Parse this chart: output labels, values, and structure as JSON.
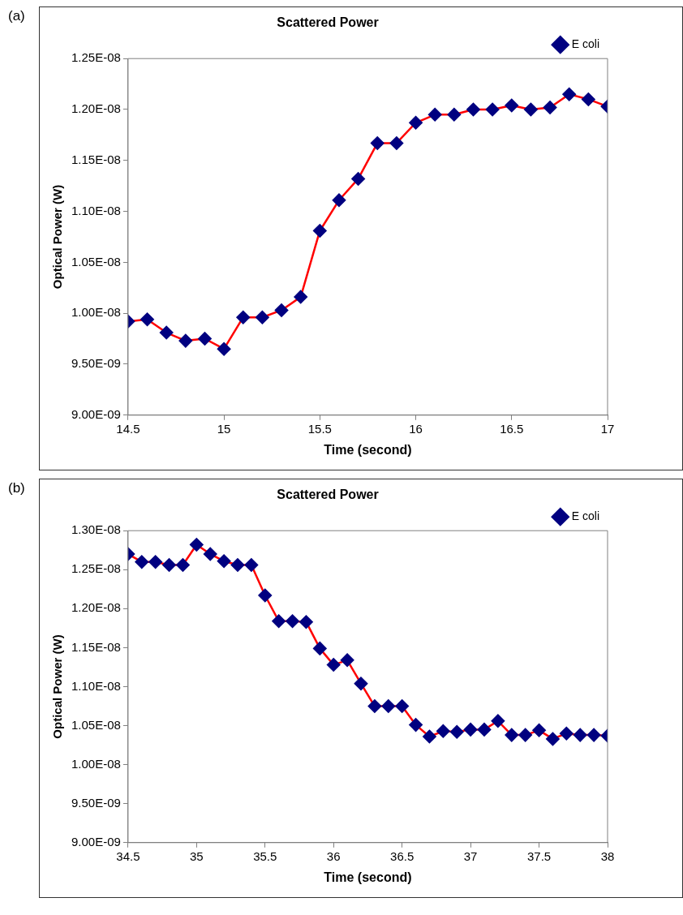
{
  "chart_data": [
    {
      "type": "line",
      "title": "Scattered Power",
      "xlabel": "Time (second)",
      "ylabel": "Optical Power (W)",
      "annotations": [
        "(a)"
      ],
      "legend": "top right",
      "grid": false,
      "marker": "diamond",
      "line_style": "solid",
      "xlim": [
        14.5,
        17
      ],
      "xticks": [
        14.5,
        15,
        15.5,
        16,
        16.5,
        17
      ],
      "ylim": [
        9e-09,
        1.25e-08
      ],
      "yticks": [
        {
          "value": 9e-09,
          "label": "9.00E-09"
        },
        {
          "value": 9.5e-09,
          "label": "9.50E-09"
        },
        {
          "value": 1e-08,
          "label": "1.00E-08"
        },
        {
          "value": 1.05e-08,
          "label": "1.05E-08"
        },
        {
          "value": 1.1e-08,
          "label": "1.10E-08"
        },
        {
          "value": 1.15e-08,
          "label": "1.15E-08"
        },
        {
          "value": 1.2e-08,
          "label": "1.20E-08"
        },
        {
          "value": 1.25e-08,
          "label": "1.25E-08"
        }
      ],
      "x": [
        14.5,
        14.6,
        14.7,
        14.8,
        14.9,
        15.0,
        15.1,
        15.2,
        15.3,
        15.4,
        15.5,
        15.6,
        15.7,
        15.8,
        15.9,
        16.0,
        16.1,
        16.2,
        16.3,
        16.4,
        16.5,
        16.6,
        16.7,
        16.8,
        16.9,
        17.0
      ],
      "series": [
        {
          "name": "E coli",
          "color": "#ff0000",
          "colors": [
            "#000080",
            "#000080",
            "#000080",
            "#000080",
            "#000080",
            "#000080",
            "#000080",
            "#000080",
            "#000080",
            "#000080",
            "#000080",
            "#000080",
            "#000080",
            "#000080",
            "#000080",
            "#000080",
            "#000080",
            "#000080",
            "#000080",
            "#000080",
            "#000080",
            "#000080",
            "#000080",
            "#000080",
            "#000080",
            "#000080"
          ],
          "values": [
            9.92e-09,
            9.94e-09,
            9.81e-09,
            9.73e-09,
            9.75e-09,
            9.65e-09,
            9.96e-09,
            9.96e-09,
            1.003e-08,
            1.016e-08,
            1.081e-08,
            1.111e-08,
            1.132e-08,
            1.167e-08,
            1.167e-08,
            1.187e-08,
            1.195e-08,
            1.195e-08,
            1.2e-08,
            1.2e-08,
            1.204e-08,
            1.2e-08,
            1.202e-08,
            1.215e-08,
            1.21e-08,
            1.203e-08
          ]
        }
      ]
    },
    {
      "type": "line",
      "title": "Scattered Power",
      "xlabel": "Time (second)",
      "ylabel": "Optical Power (W)",
      "annotations": [
        "(b)"
      ],
      "legend": "top right",
      "grid": false,
      "marker": "diamond",
      "line_style": "solid",
      "xlim": [
        34.5,
        38
      ],
      "xticks": [
        34.5,
        35,
        35.5,
        36,
        36.5,
        37,
        37.5,
        38
      ],
      "ylim": [
        9e-09,
        1.3e-08
      ],
      "yticks": [
        {
          "value": 9e-09,
          "label": "9.00E-09"
        },
        {
          "value": 9.5e-09,
          "label": "9.50E-09"
        },
        {
          "value": 1e-08,
          "label": "1.00E-08"
        },
        {
          "value": 1.05e-08,
          "label": "1.05E-08"
        },
        {
          "value": 1.1e-08,
          "label": "1.10E-08"
        },
        {
          "value": 1.15e-08,
          "label": "1.15E-08"
        },
        {
          "value": 1.2e-08,
          "label": "1.20E-08"
        },
        {
          "value": 1.25e-08,
          "label": "1.25E-08"
        },
        {
          "value": 1.3e-08,
          "label": "1.30E-08"
        }
      ],
      "x": [
        34.5,
        34.6,
        34.7,
        34.8,
        34.9,
        35.0,
        35.1,
        35.2,
        35.3,
        35.4,
        35.5,
        35.6,
        35.7,
        35.8,
        35.9,
        36.0,
        36.1,
        36.2,
        36.3,
        36.4,
        36.5,
        36.6,
        36.7,
        36.8,
        36.9,
        37.0,
        37.1,
        37.2,
        37.3,
        37.4,
        37.5,
        37.6,
        37.7,
        37.8,
        37.9,
        38.0
      ],
      "series": [
        {
          "name": "E coli",
          "color": "#ff0000",
          "colors": [
            "#000080",
            "#000080",
            "#000080",
            "#000080",
            "#000080",
            "#000080",
            "#000080",
            "#000080",
            "#000080",
            "#000080",
            "#000080",
            "#000080",
            "#000080",
            "#000080",
            "#000080",
            "#000080",
            "#000080",
            "#000080",
            "#000080",
            "#000080",
            "#000080",
            "#000080",
            "#000080",
            "#000080",
            "#000080",
            "#000080",
            "#000080",
            "#000080",
            "#000080",
            "#000080",
            "#000080",
            "#000080",
            "#000080",
            "#000080",
            "#000080",
            "#000080"
          ],
          "values": [
            1.27e-08,
            1.26e-08,
            1.26e-08,
            1.256e-08,
            1.256e-08,
            1.282e-08,
            1.27e-08,
            1.261e-08,
            1.256e-08,
            1.256e-08,
            1.217e-08,
            1.184e-08,
            1.184e-08,
            1.183e-08,
            1.149e-08,
            1.128e-08,
            1.134e-08,
            1.104e-08,
            1.075e-08,
            1.075e-08,
            1.075e-08,
            1.051e-08,
            1.036e-08,
            1.043e-08,
            1.042e-08,
            1.045e-08,
            1.045e-08,
            1.056e-08,
            1.038e-08,
            1.038e-08,
            1.044e-08,
            1.033e-08,
            1.04e-08,
            1.038e-08,
            1.038e-08,
            1.037e-08
          ]
        }
      ]
    }
  ]
}
